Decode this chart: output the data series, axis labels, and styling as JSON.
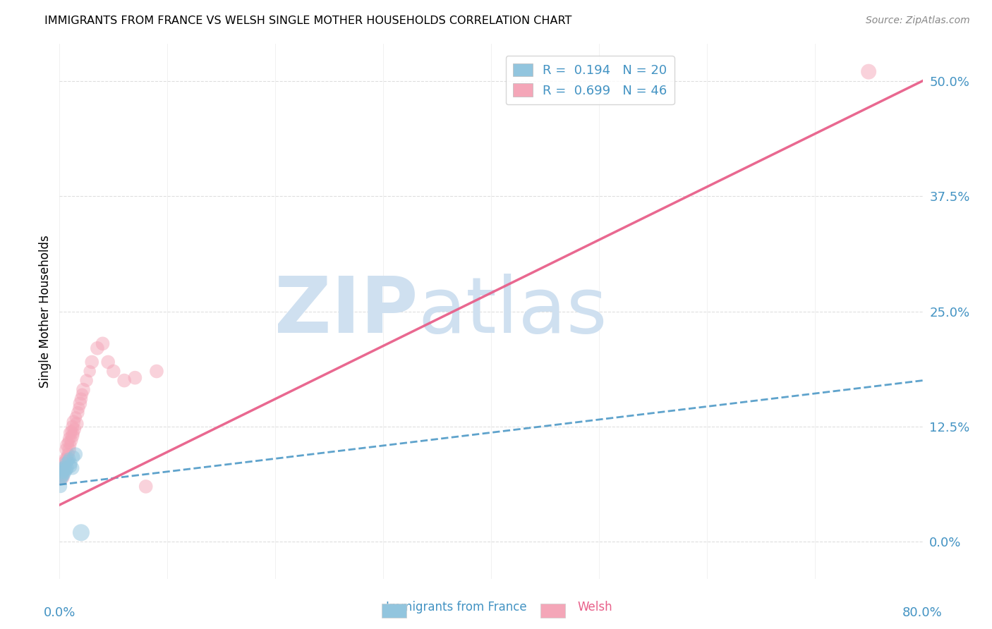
{
  "title": "IMMIGRANTS FROM FRANCE VS WELSH SINGLE MOTHER HOUSEHOLDS CORRELATION CHART",
  "source": "Source: ZipAtlas.com",
  "ylabel_label": "Single Mother Households",
  "xlim": [
    0.0,
    0.8
  ],
  "ylim": [
    -0.04,
    0.54
  ],
  "blue_color": "#92c5de",
  "pink_color": "#f4a6b8",
  "blue_line_color": "#4393c3",
  "pink_line_color": "#e8608a",
  "watermark_color": "#cfe0f0",
  "background_color": "#ffffff",
  "grid_color": "#d0d0d0",
  "blue_scatter": {
    "x": [
      0.001,
      0.002,
      0.002,
      0.003,
      0.003,
      0.004,
      0.004,
      0.005,
      0.005,
      0.006,
      0.006,
      0.007,
      0.008,
      0.009,
      0.01,
      0.011,
      0.012,
      0.013,
      0.015,
      0.02
    ],
    "y": [
      0.06,
      0.068,
      0.075,
      0.07,
      0.08,
      0.072,
      0.078,
      0.075,
      0.082,
      0.078,
      0.085,
      0.08,
      0.088,
      0.09,
      0.082,
      0.085,
      0.08,
      0.092,
      0.095,
      0.01
    ],
    "sizes": [
      180,
      160,
      200,
      150,
      180,
      160,
      200,
      180,
      160,
      200,
      180,
      200,
      160,
      180,
      200,
      160,
      200,
      180,
      200,
      300
    ]
  },
  "pink_scatter": {
    "x": [
      0.001,
      0.002,
      0.002,
      0.003,
      0.003,
      0.004,
      0.004,
      0.005,
      0.005,
      0.006,
      0.006,
      0.007,
      0.007,
      0.008,
      0.008,
      0.009,
      0.009,
      0.01,
      0.01,
      0.011,
      0.011,
      0.012,
      0.012,
      0.013,
      0.013,
      0.014,
      0.015,
      0.016,
      0.017,
      0.018,
      0.019,
      0.02,
      0.021,
      0.022,
      0.025,
      0.028,
      0.03,
      0.035,
      0.04,
      0.045,
      0.05,
      0.06,
      0.07,
      0.08,
      0.09,
      0.75
    ],
    "y": [
      0.068,
      0.072,
      0.078,
      0.07,
      0.08,
      0.075,
      0.085,
      0.08,
      0.09,
      0.088,
      0.1,
      0.092,
      0.105,
      0.095,
      0.108,
      0.1,
      0.112,
      0.105,
      0.118,
      0.11,
      0.12,
      0.115,
      0.125,
      0.118,
      0.13,
      0.122,
      0.135,
      0.128,
      0.14,
      0.145,
      0.15,
      0.155,
      0.16,
      0.165,
      0.175,
      0.185,
      0.195,
      0.21,
      0.215,
      0.195,
      0.185,
      0.175,
      0.178,
      0.06,
      0.185,
      0.51
    ],
    "sizes": [
      150,
      180,
      160,
      200,
      180,
      160,
      200,
      180,
      160,
      200,
      180,
      160,
      200,
      180,
      160,
      200,
      180,
      160,
      200,
      180,
      160,
      200,
      180,
      160,
      200,
      180,
      160,
      200,
      180,
      160,
      200,
      180,
      160,
      200,
      180,
      160,
      200,
      200,
      200,
      200,
      200,
      200,
      200,
      200,
      200,
      250
    ]
  },
  "blue_line": {
    "x0": 0.0,
    "y0": 0.062,
    "x1": 0.8,
    "y1": 0.175
  },
  "pink_line": {
    "x0": 0.0,
    "y0": 0.04,
    "x1": 0.8,
    "y1": 0.5
  }
}
